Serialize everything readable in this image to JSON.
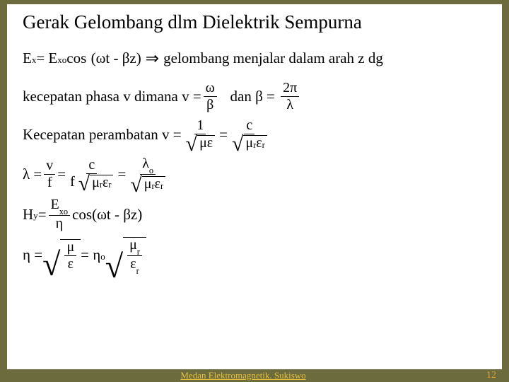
{
  "slide": {
    "title": "Gerak Gelombang dlm Dielektrik Sempurna",
    "background_color": "#ffffff",
    "outer_background": "#6b6b3e",
    "title_fontsize": 27,
    "body_fontsize": 21,
    "text_color": "#000000"
  },
  "lines": {
    "l1_Ex": "E",
    "l1_x": "x",
    "l1_eq": " = E",
    "l1_xo": "xo",
    "l1_cos": "cos",
    "l1_paren": "(ωt - βz)",
    "l1_arrow": "⇒",
    "l1_txt": " gelombang menjalar dalam arah z dg",
    "l2_txt": "kecepatan phasa v dimana v = ",
    "l2_num1": "ω",
    "l2_den1": "β",
    "l2_mid": "   dan β = ",
    "l2_num2": "2π",
    "l2_den2": "λ",
    "l3_txt": "Kecepatan perambatan v = ",
    "l3_num1": "1",
    "l3_den1_rad": "με",
    "l3_eq": " = ",
    "l3_num2": "c",
    "l3_den2_rad_mu": "μ",
    "l3_den2_rad_r1": "r",
    "l3_den2_rad_eps": "ε",
    "l3_den2_rad_r2": "r",
    "l4_lambda": "λ = ",
    "l4_num1": "v",
    "l4_den1": "f",
    "l4_eq1": " = ",
    "l4_num2": "c",
    "l4_den2_f": "f",
    "l4_eq2": " = ",
    "l4_num3_lam": "λ",
    "l4_num3_o": "o",
    "l5_H": "H",
    "l5_y": "y",
    "l5_eq": " = ",
    "l5_num_E": "E",
    "l5_num_xo": "xo",
    "l5_den": "η",
    "l5_cos": " cos(ωt - βz)",
    "l6_eta": "η = ",
    "l6_num1": "μ",
    "l6_den1": "ε",
    "l6_eq": " = η",
    "l6_o": "o",
    "l6_num2_mu": "μ",
    "l6_num2_r": "r",
    "l6_den2_eps": "ε",
    "l6_den2_r": "r"
  },
  "footer": {
    "text": "Medan Elektromagnetik. Sukiswo",
    "text_color": "#e8c040",
    "page_number": "12",
    "page_number_color": "#e8a030"
  }
}
